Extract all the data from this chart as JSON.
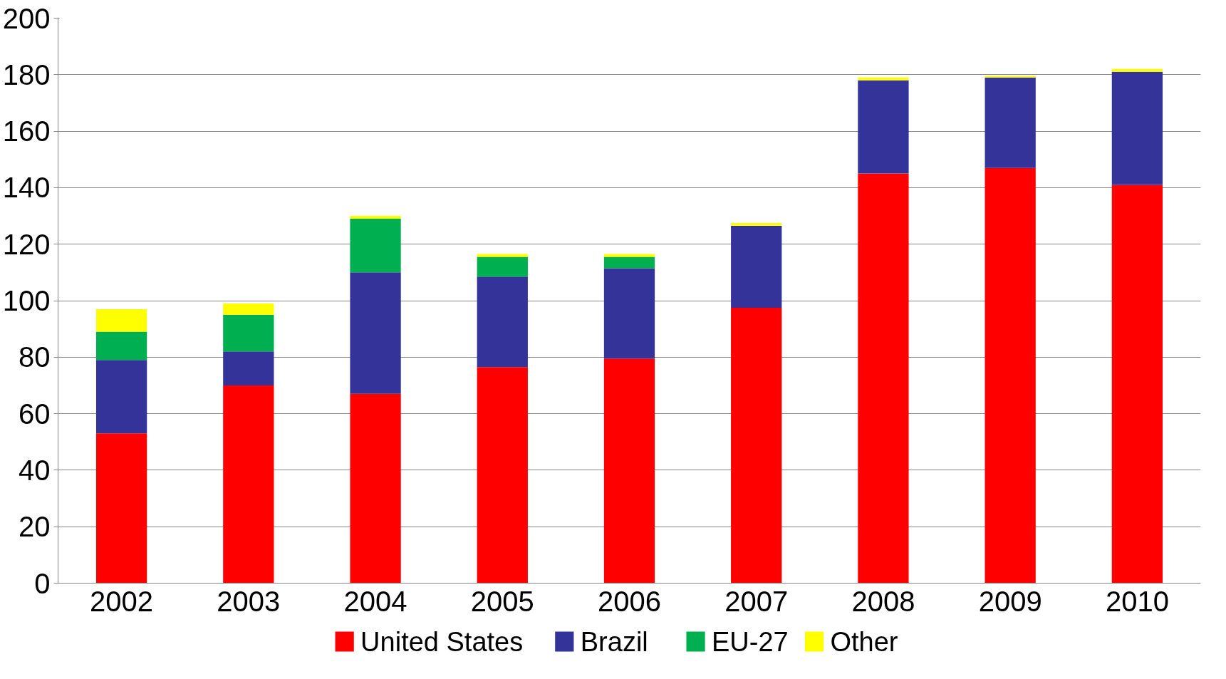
{
  "chart_data": {
    "type": "bar",
    "stacked": true,
    "categories": [
      "2002",
      "2003",
      "2004",
      "2005",
      "2006",
      "2007",
      "2008",
      "2009",
      "2010"
    ],
    "series": [
      {
        "name": "United States",
        "color": "#ff0000",
        "values": [
          53,
          70,
          67,
          76.5,
          79.5,
          97.5,
          145,
          147,
          141
        ]
      },
      {
        "name": "Brazil",
        "color": "#333399",
        "values": [
          26,
          12,
          43,
          32,
          32,
          29,
          33,
          32,
          40
        ]
      },
      {
        "name": "EU-27",
        "color": "#00b050",
        "values": [
          10,
          13,
          19,
          7,
          4,
          0,
          0,
          0,
          0
        ]
      },
      {
        "name": "Other",
        "color": "#ffff00",
        "values": [
          8,
          4,
          1,
          1,
          1,
          1,
          1,
          0.6,
          1
        ]
      }
    ],
    "ylim": [
      0,
      200
    ],
    "yticks": [
      0,
      20,
      40,
      60,
      80,
      100,
      120,
      140,
      160,
      180,
      200
    ],
    "grid": "y",
    "legend": "bottom"
  }
}
